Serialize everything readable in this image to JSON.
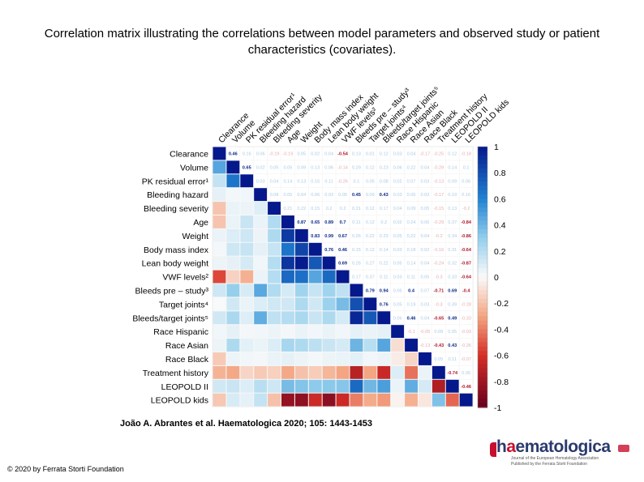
{
  "title": "Correlation matrix illustrating the correlations between model parameters and observed study or patient characteristics (covariates).",
  "citation": "João A. Abrantes et al. Haematologica 2020; 105: 1443-1453",
  "copyright": "© 2020 by Ferrata Storti Foundation",
  "logo": {
    "word_prefix": "h",
    "word_accent": "a",
    "word_rest": "ematologica",
    "sub1": "Journal of the European Hematology Association",
    "sub2": "Published by the Ferrata Storti Foundation"
  },
  "chart_data": {
    "type": "heatmap",
    "title": "",
    "variables": [
      "Clearance",
      "Volume",
      "PK residual error¹",
      "Bleeding hazard",
      "Bleeding severity",
      "Age",
      "Weight",
      "Body mass index",
      "Lean body weight",
      "VWF levels²",
      "Bleeds pre – study³",
      "Target joints⁴",
      "Bleeds/target joints⁵",
      "Race Hispanic",
      "Race Asian",
      "Race Black",
      "Treatment history",
      "LEOPOLD II",
      "LEOPOLD kids"
    ],
    "colorbar": {
      "min": -1,
      "max": 1,
      "ticks": [
        "1",
        "0.8",
        "0.6",
        "0.4",
        "0.2",
        "0",
        "-0.2",
        "-0.4",
        "-0.6",
        "-0.8",
        "-1"
      ]
    },
    "layout": "upper triangle shows coefficients as text, lower triangle shows colored cells",
    "matrix": [
      [
        1,
        0.46,
        0.16,
        0.06,
        -0.19,
        -0.19,
        0.05,
        0.02,
        0.04,
        -0.54,
        0.13,
        0.01,
        0.12,
        0.03,
        0.04,
        -0.17,
        -0.25,
        0.12,
        -0.18
      ],
      [
        0.46,
        1,
        0.65,
        0.02,
        0.05,
        0.05,
        0.09,
        0.13,
        0.06,
        -0.14,
        0.29,
        0.12,
        0.23,
        0.06,
        0.22,
        0.04,
        -0.29,
        0.14,
        0.1
      ],
      [
        0.16,
        0.65,
        1,
        0.03,
        0.04,
        0.14,
        0.13,
        0.15,
        0.11,
        -0.26,
        0.1,
        0.05,
        0.08,
        0.02,
        0.07,
        0.03,
        -0.13,
        0.09,
        0.06
      ],
      [
        0.06,
        0.02,
        0.03,
        1,
        0.08,
        0.05,
        0.04,
        0.06,
        0.03,
        0.05,
        0.45,
        0.09,
        0.43,
        0.03,
        0.05,
        0.02,
        -0.17,
        0.19,
        0.16
      ],
      [
        -0.19,
        0.05,
        0.04,
        0.08,
        1,
        0.21,
        0.22,
        0.15,
        0.2,
        0.2,
        0.21,
        0.12,
        0.17,
        0.04,
        0.09,
        0.05,
        -0.15,
        0.13,
        -0.2
      ],
      [
        -0.19,
        0.05,
        0.14,
        0.05,
        0.21,
        1,
        0.87,
        0.65,
        0.89,
        0.7,
        0.11,
        0.12,
        0.2,
        0.02,
        0.24,
        0.06,
        -0.29,
        0.37,
        -0.84
      ],
      [
        0.05,
        0.09,
        0.13,
        0.04,
        0.22,
        0.87,
        1,
        0.83,
        0.99,
        0.67,
        0.26,
        0.22,
        0.23,
        0.05,
        0.22,
        0.04,
        -0.2,
        0.34,
        -0.86
      ],
      [
        0.02,
        0.13,
        0.15,
        0.06,
        0.15,
        0.65,
        0.83,
        1,
        0.76,
        0.46,
        0.15,
        0.12,
        0.14,
        0.03,
        0.18,
        0.02,
        -0.16,
        0.31,
        -0.64
      ],
      [
        0.04,
        0.06,
        0.11,
        0.03,
        0.2,
        0.89,
        0.99,
        0.76,
        1,
        0.69,
        0.26,
        0.27,
        0.22,
        0.05,
        0.14,
        0.04,
        -0.24,
        0.32,
        -0.87
      ],
      [
        -0.54,
        -0.14,
        -0.26,
        0.05,
        0.2,
        0.7,
        0.67,
        0.46,
        0.69,
        1,
        0.17,
        0.37,
        0.11,
        0.03,
        0.11,
        0.05,
        -0.3,
        0.33,
        -0.64
      ],
      [
        0.13,
        0.29,
        0.1,
        0.45,
        0.21,
        0.11,
        0.26,
        0.15,
        0.26,
        0.17,
        1,
        0.79,
        0.94,
        0.06,
        0.4,
        0.07,
        -0.71,
        0.69,
        -0.4
      ],
      [
        0.01,
        0.12,
        0.05,
        0.09,
        0.12,
        0.12,
        0.22,
        0.12,
        0.27,
        0.37,
        0.79,
        1,
        0.76,
        0.05,
        0.19,
        0.03,
        -0.3,
        0.39,
        -0.28
      ],
      [
        0.12,
        0.23,
        0.08,
        0.43,
        0.17,
        0.2,
        0.23,
        0.14,
        0.22,
        0.11,
        0.94,
        0.76,
        1,
        0.06,
        0.46,
        0.04,
        -0.65,
        0.49,
        -0.33
      ],
      [
        0.03,
        0.06,
        0.02,
        0.03,
        0.04,
        0.02,
        0.05,
        0.03,
        0.05,
        0.03,
        0.06,
        0.05,
        0.06,
        1,
        -0.1,
        -0.05,
        0.09,
        0.05,
        -0.03
      ],
      [
        0.04,
        0.22,
        0.07,
        0.05,
        0.09,
        0.24,
        0.22,
        0.18,
        0.14,
        0.11,
        0.4,
        0.19,
        0.46,
        -0.1,
        1,
        -0.13,
        -0.43,
        0.43,
        -0.26
      ],
      [
        -0.17,
        0.04,
        0.03,
        0.02,
        0.05,
        0.06,
        0.04,
        0.02,
        0.04,
        0.05,
        0.07,
        0.03,
        0.04,
        -0.05,
        -0.13,
        1,
        0.05,
        0.11,
        -0.07
      ],
      [
        -0.25,
        -0.29,
        -0.13,
        -0.17,
        -0.15,
        -0.29,
        -0.2,
        -0.16,
        -0.24,
        -0.3,
        -0.71,
        -0.3,
        -0.65,
        0.09,
        -0.43,
        0.05,
        1,
        -0.74,
        0.35
      ],
      [
        0.12,
        0.14,
        0.09,
        0.19,
        0.13,
        0.37,
        0.34,
        0.31,
        0.32,
        0.33,
        0.69,
        0.39,
        0.49,
        0.05,
        0.43,
        0.11,
        -0.74,
        1,
        -0.46
      ],
      [
        -0.18,
        0.1,
        0.06,
        0.16,
        -0.2,
        -0.84,
        -0.86,
        -0.64,
        -0.87,
        -0.64,
        -0.4,
        -0.28,
        -0.33,
        -0.03,
        -0.26,
        -0.07,
        0.35,
        -0.46,
        1
      ]
    ]
  }
}
